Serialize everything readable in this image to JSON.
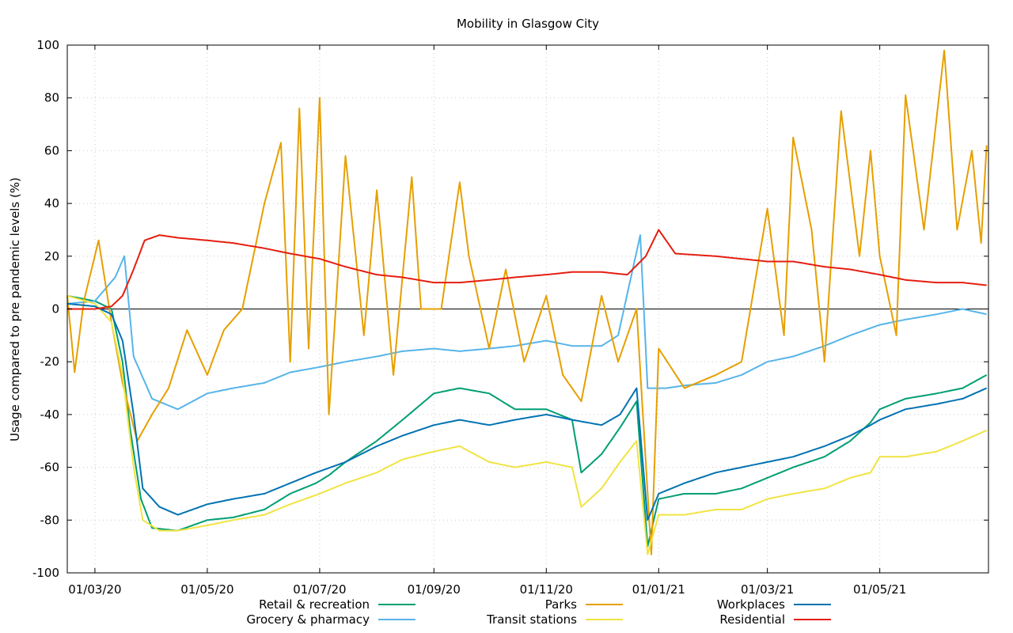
{
  "chart_data": {
    "type": "line",
    "title": "Mobility in Glasgow City",
    "xlabel": "",
    "ylabel": "Usage compared to pre pandemic levels (%)",
    "ylim": [
      -100,
      100
    ],
    "yticks": [
      -100,
      -80,
      -60,
      -40,
      -20,
      0,
      20,
      40,
      60,
      80,
      100
    ],
    "xlim": [
      "2020-02-15",
      "2021-06-29"
    ],
    "xticks": [
      {
        "date": "2020-03-01",
        "label": "01/03/20"
      },
      {
        "date": "2020-05-01",
        "label": "01/05/20"
      },
      {
        "date": "2020-07-01",
        "label": "01/07/20"
      },
      {
        "date": "2020-09-01",
        "label": "01/09/20"
      },
      {
        "date": "2020-11-01",
        "label": "01/11/20"
      },
      {
        "date": "2021-01-01",
        "label": "01/01/21"
      },
      {
        "date": "2021-03-01",
        "label": "01/03/21"
      },
      {
        "date": "2021-05-01",
        "label": "01/05/21"
      }
    ],
    "grid": true,
    "legend_position": "bottom",
    "series": [
      {
        "name": "Retail & recreation",
        "color": "#009e73",
        "points": [
          [
            "2020-02-15",
            5
          ],
          [
            "2020-03-01",
            3
          ],
          [
            "2020-03-10",
            0
          ],
          [
            "2020-03-16",
            -20
          ],
          [
            "2020-03-20",
            -45
          ],
          [
            "2020-03-26",
            -72
          ],
          [
            "2020-04-01",
            -83
          ],
          [
            "2020-04-15",
            -84
          ],
          [
            "2020-05-01",
            -80
          ],
          [
            "2020-05-15",
            -79
          ],
          [
            "2020-06-01",
            -76
          ],
          [
            "2020-06-15",
            -70
          ],
          [
            "2020-06-29",
            -66
          ],
          [
            "2020-07-06",
            -63
          ],
          [
            "2020-07-15",
            -58
          ],
          [
            "2020-08-01",
            -50
          ],
          [
            "2020-08-15",
            -42
          ],
          [
            "2020-09-01",
            -32
          ],
          [
            "2020-09-15",
            -30
          ],
          [
            "2020-10-01",
            -32
          ],
          [
            "2020-10-15",
            -38
          ],
          [
            "2020-11-01",
            -38
          ],
          [
            "2020-11-15",
            -42
          ],
          [
            "2020-11-20",
            -62
          ],
          [
            "2020-12-01",
            -55
          ],
          [
            "2020-12-11",
            -45
          ],
          [
            "2020-12-20",
            -35
          ],
          [
            "2020-12-26",
            -90
          ],
          [
            "2021-01-01",
            -72
          ],
          [
            "2021-01-15",
            -70
          ],
          [
            "2021-02-01",
            -70
          ],
          [
            "2021-02-15",
            -68
          ],
          [
            "2021-03-01",
            -64
          ],
          [
            "2021-03-15",
            -60
          ],
          [
            "2021-04-01",
            -56
          ],
          [
            "2021-04-15",
            -50
          ],
          [
            "2021-04-26",
            -43
          ],
          [
            "2021-05-01",
            -38
          ],
          [
            "2021-05-15",
            -34
          ],
          [
            "2021-06-01",
            -32
          ],
          [
            "2021-06-15",
            -30
          ],
          [
            "2021-06-28",
            -25
          ]
        ]
      },
      {
        "name": "Grocery & pharmacy",
        "color": "#56b4e9",
        "points": [
          [
            "2020-02-15",
            2
          ],
          [
            "2020-03-01",
            3
          ],
          [
            "2020-03-12",
            12
          ],
          [
            "2020-03-17",
            20
          ],
          [
            "2020-03-22",
            -18
          ],
          [
            "2020-04-01",
            -34
          ],
          [
            "2020-04-15",
            -38
          ],
          [
            "2020-05-01",
            -32
          ],
          [
            "2020-05-15",
            -30
          ],
          [
            "2020-06-01",
            -28
          ],
          [
            "2020-06-15",
            -24
          ],
          [
            "2020-07-01",
            -22
          ],
          [
            "2020-07-15",
            -20
          ],
          [
            "2020-08-01",
            -18
          ],
          [
            "2020-08-15",
            -16
          ],
          [
            "2020-09-01",
            -15
          ],
          [
            "2020-09-15",
            -16
          ],
          [
            "2020-10-01",
            -15
          ],
          [
            "2020-10-15",
            -14
          ],
          [
            "2020-11-01",
            -12
          ],
          [
            "2020-11-15",
            -14
          ],
          [
            "2020-12-01",
            -14
          ],
          [
            "2020-12-10",
            -10
          ],
          [
            "2020-12-22",
            28
          ],
          [
            "2020-12-26",
            -30
          ],
          [
            "2021-01-05",
            -30
          ],
          [
            "2021-01-15",
            -29
          ],
          [
            "2021-02-01",
            -28
          ],
          [
            "2021-02-15",
            -25
          ],
          [
            "2021-03-01",
            -20
          ],
          [
            "2021-03-15",
            -18
          ],
          [
            "2021-04-01",
            -14
          ],
          [
            "2021-04-15",
            -10
          ],
          [
            "2021-05-01",
            -6
          ],
          [
            "2021-05-15",
            -4
          ],
          [
            "2021-06-01",
            -2
          ],
          [
            "2021-06-15",
            0
          ],
          [
            "2021-06-28",
            -2
          ]
        ]
      },
      {
        "name": "Parks",
        "color": "#e69f00",
        "points": [
          [
            "2020-02-15",
            5
          ],
          [
            "2020-02-19",
            -24
          ],
          [
            "2020-02-24",
            3
          ],
          [
            "2020-03-03",
            26
          ],
          [
            "2020-03-10",
            -5
          ],
          [
            "2020-03-16",
            -28
          ],
          [
            "2020-03-24",
            -50
          ],
          [
            "2020-04-01",
            -40
          ],
          [
            "2020-04-10",
            -30
          ],
          [
            "2020-04-20",
            -8
          ],
          [
            "2020-05-01",
            -25
          ],
          [
            "2020-05-10",
            -8
          ],
          [
            "2020-05-20",
            0
          ],
          [
            "2020-06-01",
            40
          ],
          [
            "2020-06-10",
            63
          ],
          [
            "2020-06-15",
            -20
          ],
          [
            "2020-06-20",
            76
          ],
          [
            "2020-06-25",
            -15
          ],
          [
            "2020-07-01",
            80
          ],
          [
            "2020-07-06",
            -40
          ],
          [
            "2020-07-15",
            58
          ],
          [
            "2020-07-25",
            -10
          ],
          [
            "2020-08-01",
            45
          ],
          [
            "2020-08-10",
            -25
          ],
          [
            "2020-08-20",
            50
          ],
          [
            "2020-08-25",
            0
          ],
          [
            "2020-09-05",
            0
          ],
          [
            "2020-09-15",
            48
          ],
          [
            "2020-09-20",
            20
          ],
          [
            "2020-10-01",
            -15
          ],
          [
            "2020-10-10",
            15
          ],
          [
            "2020-10-20",
            -20
          ],
          [
            "2020-11-01",
            5
          ],
          [
            "2020-11-10",
            -25
          ],
          [
            "2020-11-20",
            -35
          ],
          [
            "2020-12-01",
            5
          ],
          [
            "2020-12-10",
            -20
          ],
          [
            "2020-12-20",
            0
          ],
          [
            "2020-12-28",
            -93
          ],
          [
            "2021-01-01",
            -15
          ],
          [
            "2021-01-15",
            -30
          ],
          [
            "2021-02-01",
            -25
          ],
          [
            "2021-02-15",
            -20
          ],
          [
            "2021-03-01",
            38
          ],
          [
            "2021-03-10",
            -10
          ],
          [
            "2021-03-15",
            65
          ],
          [
            "2021-03-25",
            30
          ],
          [
            "2021-04-01",
            -20
          ],
          [
            "2021-04-10",
            75
          ],
          [
            "2021-04-20",
            20
          ],
          [
            "2021-04-26",
            60
          ],
          [
            "2021-05-01",
            20
          ],
          [
            "2021-05-10",
            -10
          ],
          [
            "2021-05-15",
            81
          ],
          [
            "2021-05-25",
            30
          ],
          [
            "2021-06-05",
            98
          ],
          [
            "2021-06-12",
            30
          ],
          [
            "2021-06-20",
            60
          ],
          [
            "2021-06-25",
            25
          ],
          [
            "2021-06-28",
            62
          ]
        ]
      },
      {
        "name": "Transit stations",
        "color": "#f0e442",
        "points": [
          [
            "2020-02-15",
            5
          ],
          [
            "2020-03-01",
            2
          ],
          [
            "2020-03-10",
            -5
          ],
          [
            "2020-03-16",
            -25
          ],
          [
            "2020-03-22",
            -60
          ],
          [
            "2020-03-27",
            -80
          ],
          [
            "2020-04-05",
            -84
          ],
          [
            "2020-04-15",
            -84
          ],
          [
            "2020-05-01",
            -82
          ],
          [
            "2020-05-15",
            -80
          ],
          [
            "2020-06-01",
            -78
          ],
          [
            "2020-06-15",
            -74
          ],
          [
            "2020-07-01",
            -70
          ],
          [
            "2020-07-15",
            -66
          ],
          [
            "2020-08-01",
            -62
          ],
          [
            "2020-08-15",
            -57
          ],
          [
            "2020-09-01",
            -54
          ],
          [
            "2020-09-15",
            -52
          ],
          [
            "2020-10-01",
            -58
          ],
          [
            "2020-10-15",
            -60
          ],
          [
            "2020-11-01",
            -58
          ],
          [
            "2020-11-15",
            -60
          ],
          [
            "2020-11-20",
            -75
          ],
          [
            "2020-12-01",
            -68
          ],
          [
            "2020-12-11",
            -58
          ],
          [
            "2020-12-20",
            -50
          ],
          [
            "2020-12-26",
            -93
          ],
          [
            "2021-01-01",
            -78
          ],
          [
            "2021-01-15",
            -78
          ],
          [
            "2021-02-01",
            -76
          ],
          [
            "2021-02-15",
            -76
          ],
          [
            "2021-03-01",
            -72
          ],
          [
            "2021-03-15",
            -70
          ],
          [
            "2021-04-01",
            -68
          ],
          [
            "2021-04-15",
            -64
          ],
          [
            "2021-04-26",
            -62
          ],
          [
            "2021-05-01",
            -56
          ],
          [
            "2021-05-15",
            -56
          ],
          [
            "2021-06-01",
            -54
          ],
          [
            "2021-06-15",
            -50
          ],
          [
            "2021-06-28",
            -46
          ]
        ]
      },
      {
        "name": "Workplaces",
        "color": "#0072b2",
        "points": [
          [
            "2020-02-15",
            2
          ],
          [
            "2020-03-01",
            1
          ],
          [
            "2020-03-10",
            -2
          ],
          [
            "2020-03-16",
            -12
          ],
          [
            "2020-03-22",
            -40
          ],
          [
            "2020-03-27",
            -68
          ],
          [
            "2020-04-05",
            -75
          ],
          [
            "2020-04-15",
            -78
          ],
          [
            "2020-05-01",
            -74
          ],
          [
            "2020-05-15",
            -72
          ],
          [
            "2020-06-01",
            -70
          ],
          [
            "2020-06-15",
            -66
          ],
          [
            "2020-06-29",
            -62
          ],
          [
            "2020-07-15",
            -58
          ],
          [
            "2020-08-01",
            -52
          ],
          [
            "2020-08-15",
            -48
          ],
          [
            "2020-09-01",
            -44
          ],
          [
            "2020-09-15",
            -42
          ],
          [
            "2020-10-01",
            -44
          ],
          [
            "2020-10-15",
            -42
          ],
          [
            "2020-11-01",
            -40
          ],
          [
            "2020-11-15",
            -42
          ],
          [
            "2020-12-01",
            -44
          ],
          [
            "2020-12-11",
            -40
          ],
          [
            "2020-12-20",
            -30
          ],
          [
            "2020-12-26",
            -80
          ],
          [
            "2021-01-01",
            -70
          ],
          [
            "2021-01-15",
            -66
          ],
          [
            "2021-02-01",
            -62
          ],
          [
            "2021-02-15",
            -60
          ],
          [
            "2021-03-01",
            -58
          ],
          [
            "2021-03-15",
            -56
          ],
          [
            "2021-04-01",
            -52
          ],
          [
            "2021-04-15",
            -48
          ],
          [
            "2021-04-26",
            -44
          ],
          [
            "2021-05-01",
            -42
          ],
          [
            "2021-05-15",
            -38
          ],
          [
            "2021-06-01",
            -36
          ],
          [
            "2021-06-15",
            -34
          ],
          [
            "2021-06-28",
            -30
          ]
        ]
      },
      {
        "name": "Residential",
        "color": "#e51e10",
        "points": [
          [
            "2020-02-15",
            0
          ],
          [
            "2020-03-01",
            0
          ],
          [
            "2020-03-10",
            1
          ],
          [
            "2020-03-16",
            5
          ],
          [
            "2020-03-22",
            15
          ],
          [
            "2020-03-28",
            26
          ],
          [
            "2020-04-05",
            28
          ],
          [
            "2020-04-15",
            27
          ],
          [
            "2020-05-01",
            26
          ],
          [
            "2020-05-15",
            25
          ],
          [
            "2020-06-01",
            23
          ],
          [
            "2020-06-15",
            21
          ],
          [
            "2020-07-01",
            19
          ],
          [
            "2020-07-15",
            16
          ],
          [
            "2020-08-01",
            13
          ],
          [
            "2020-08-15",
            12
          ],
          [
            "2020-09-01",
            10
          ],
          [
            "2020-09-15",
            10
          ],
          [
            "2020-10-01",
            11
          ],
          [
            "2020-10-15",
            12
          ],
          [
            "2020-11-01",
            13
          ],
          [
            "2020-11-15",
            14
          ],
          [
            "2020-12-01",
            14
          ],
          [
            "2020-12-15",
            13
          ],
          [
            "2020-12-25",
            20
          ],
          [
            "2021-01-01",
            30
          ],
          [
            "2021-01-10",
            21
          ],
          [
            "2021-02-01",
            20
          ],
          [
            "2021-02-15",
            19
          ],
          [
            "2021-03-01",
            18
          ],
          [
            "2021-03-15",
            18
          ],
          [
            "2021-04-01",
            16
          ],
          [
            "2021-04-15",
            15
          ],
          [
            "2021-05-01",
            13
          ],
          [
            "2021-05-15",
            11
          ],
          [
            "2021-06-01",
            10
          ],
          [
            "2021-06-15",
            10
          ],
          [
            "2021-06-28",
            9
          ]
        ]
      }
    ]
  }
}
